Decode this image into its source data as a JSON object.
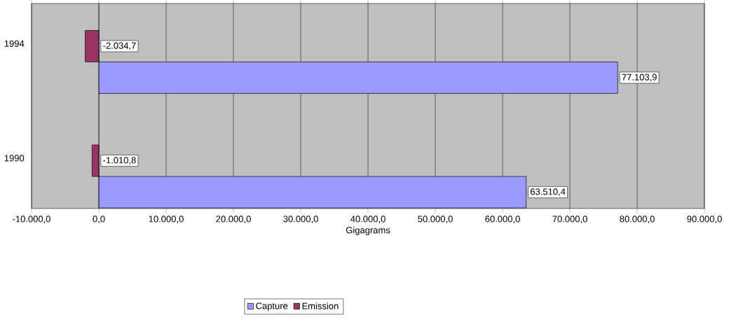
{
  "chart_data": {
    "type": "bar",
    "orientation": "horizontal",
    "xlabel": "Gigagrams",
    "categories": [
      "1994",
      "1990"
    ],
    "series": [
      {
        "name": "Capture",
        "color": "#9999ff",
        "values": [
          77103.9,
          63510.4
        ],
        "value_labels": [
          "77.103,9",
          "63.510,4"
        ]
      },
      {
        "name": "Emission",
        "color": "#993366",
        "values": [
          -2034.7,
          -1010.8
        ],
        "value_labels": [
          "-2.034,7",
          "-1.010,8"
        ]
      }
    ],
    "xlim": [
      -10000,
      90000
    ],
    "xticks": [
      {
        "value": -10000,
        "label": "-10.000,0"
      },
      {
        "value": 0,
        "label": "0,0"
      },
      {
        "value": 10000,
        "label": "10.000,0"
      },
      {
        "value": 20000,
        "label": "20.000,0"
      },
      {
        "value": 30000,
        "label": "30.000,0"
      },
      {
        "value": 40000,
        "label": "40.000,0"
      },
      {
        "value": 50000,
        "label": "50.000,0"
      },
      {
        "value": 60000,
        "label": "60.000,0"
      },
      {
        "value": 70000,
        "label": "70.000,0"
      },
      {
        "value": 80000,
        "label": "80.000,0"
      },
      {
        "value": 90000,
        "label": "90.000,0"
      }
    ],
    "grid": "x",
    "legend": "bottom"
  }
}
